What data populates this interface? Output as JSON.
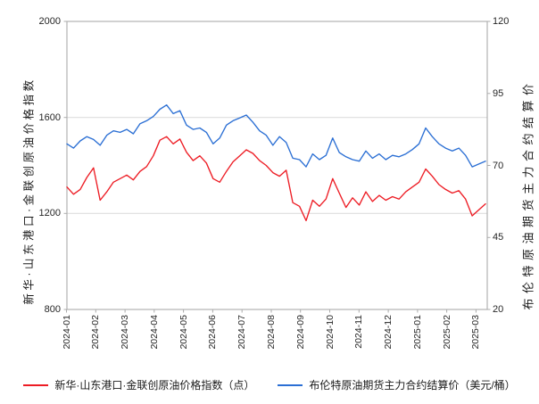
{
  "chart_data": {
    "type": "line",
    "title": "",
    "grid": "horizontal-only",
    "legend_position": "bottom-center",
    "x_axis": {
      "tick_labels": [
        "2024-01",
        "2024-02",
        "2024-03",
        "2024-04",
        "2024-05",
        "2024-06",
        "2024-07",
        "2024-08",
        "2024-09",
        "2024-10",
        "2024-11",
        "2024-12",
        "2025-01",
        "2025-02",
        "2025-03"
      ],
      "tick_rotation_deg": 90
    },
    "left_axis": {
      "label": "新华·山东港口·金联创原油价格指数",
      "ticks": [
        2000,
        1600,
        1200,
        800
      ],
      "range": [
        800,
        2000
      ]
    },
    "right_axis": {
      "label": "布伦特原油期货主力合约结算价",
      "ticks": [
        120,
        95,
        70,
        45,
        20
      ],
      "range": [
        20,
        120
      ]
    },
    "sampling": "weekly (2024-01 to 2025-03)",
    "series": [
      {
        "name": "新华·山东港口·金联创原油价格指数（点）",
        "axis": "left",
        "color": "#ed1c24",
        "values": [
          1310,
          1280,
          1300,
          1350,
          1390,
          1255,
          1290,
          1330,
          1345,
          1360,
          1340,
          1375,
          1395,
          1440,
          1505,
          1520,
          1490,
          1510,
          1455,
          1420,
          1440,
          1410,
          1345,
          1330,
          1375,
          1415,
          1440,
          1465,
          1450,
          1420,
          1400,
          1370,
          1355,
          1380,
          1245,
          1230,
          1170,
          1255,
          1230,
          1260,
          1345,
          1285,
          1225,
          1265,
          1235,
          1290,
          1250,
          1275,
          1255,
          1270,
          1260,
          1290,
          1310,
          1330,
          1385,
          1355,
          1320,
          1300,
          1285,
          1295,
          1260,
          1190,
          1215,
          1240
        ]
      },
      {
        "name": "布伦特原油期货主力合约结算价（美元/桶）",
        "axis": "right",
        "color": "#2b6fd4",
        "values": [
          77.5,
          76,
          78.5,
          80,
          79,
          77,
          80.5,
          82,
          81.5,
          82.5,
          81,
          84.5,
          85.5,
          87,
          89.5,
          91,
          88,
          89,
          84,
          82.5,
          83,
          81.5,
          77.5,
          79.5,
          84,
          85.5,
          86.5,
          87.5,
          85,
          82,
          80.5,
          77,
          80,
          78,
          72.5,
          72,
          69.5,
          74,
          72,
          73.5,
          79.5,
          74.5,
          73,
          72,
          71.5,
          75,
          72.5,
          74,
          72,
          73.5,
          73,
          74,
          75.5,
          77.5,
          83,
          80,
          77.5,
          76,
          75,
          76,
          73.5,
          69.5,
          70.5,
          71.5
        ]
      }
    ],
    "colors": {
      "frame": "#ababab",
      "gridline": "#d9d9d9",
      "tick_text": "#262626",
      "background": "#ffffff"
    }
  }
}
